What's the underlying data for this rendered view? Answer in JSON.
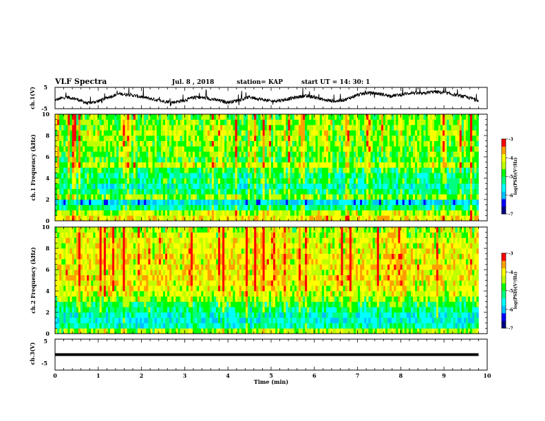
{
  "header": {
    "title": "VLF Spectra",
    "date": "Jul. 8 , 2018",
    "station": "station= KAP",
    "start": "start UT = 14: 30: 1"
  },
  "chart_data": [
    {
      "type": "line",
      "id": "ch1-voltage",
      "ylabel": "ch.1(V)",
      "ylim": [
        -5,
        5
      ],
      "ytick_labels": [
        "5",
        "-5"
      ],
      "xlim": [
        0,
        10
      ],
      "series": [
        {
          "x": [
            0,
            0.25,
            0.5,
            0.75,
            1.0,
            1.25,
            1.5,
            1.75,
            2.0,
            2.25,
            2.5,
            2.75,
            3.0,
            3.25,
            3.5,
            3.75,
            4.0,
            4.25,
            4.5,
            4.75,
            5.0,
            5.25,
            5.5,
            5.75,
            6.0,
            6.25,
            6.5,
            6.75,
            7.0,
            7.25,
            7.5,
            7.75,
            8.0,
            8.25,
            8.5,
            8.75,
            9.0,
            9.25,
            9.5,
            9.8
          ],
          "y": [
            -1.0,
            0.5,
            -0.5,
            -2.5,
            -1.5,
            0.5,
            2.0,
            1.5,
            0.5,
            -0.5,
            -1.5,
            -2.0,
            -1.0,
            0.5,
            0.0,
            -1.0,
            -2.0,
            -1.0,
            0.5,
            -0.5,
            -1.5,
            -1.0,
            0.0,
            1.0,
            0.5,
            -1.0,
            -1.5,
            -0.5,
            1.5,
            2.5,
            2.0,
            1.0,
            1.5,
            2.5,
            2.0,
            3.0,
            2.5,
            1.5,
            0.5,
            -1.0
          ]
        }
      ]
    },
    {
      "type": "heatmap",
      "id": "ch1-spectrogram",
      "ylabel": "ch.1 Frequency (kHz)",
      "ylim": [
        0,
        10
      ],
      "yticks": [
        0,
        2,
        4,
        6,
        8,
        10
      ],
      "xlim": [
        0,
        10
      ],
      "colorbar": {
        "label": "log(PSD)(V²/Hz)",
        "range": [
          -7,
          -3
        ],
        "ticks": [
          -3,
          -4,
          -5,
          -6,
          -7
        ]
      },
      "bands": [
        {
          "f0": 0.0,
          "f1": 0.5,
          "log_psd": -4.0
        },
        {
          "f0": 0.5,
          "f1": 1.0,
          "log_psd": -4.3
        },
        {
          "f0": 1.0,
          "f1": 1.5,
          "log_psd": -5.2
        },
        {
          "f0": 1.5,
          "f1": 2.0,
          "log_psd": -5.8
        },
        {
          "f0": 2.0,
          "f1": 2.5,
          "log_psd": -4.6
        },
        {
          "f0": 2.5,
          "f1": 3.0,
          "log_psd": -5.1
        },
        {
          "f0": 3.0,
          "f1": 3.5,
          "log_psd": -5.4
        },
        {
          "f0": 3.5,
          "f1": 4.0,
          "log_psd": -5.0
        },
        {
          "f0": 4.0,
          "f1": 4.5,
          "log_psd": -5.2
        },
        {
          "f0": 4.5,
          "f1": 5.0,
          "log_psd": -4.9
        },
        {
          "f0": 5.0,
          "f1": 5.5,
          "log_psd": -4.3
        },
        {
          "f0": 5.5,
          "f1": 6.0,
          "log_psd": -4.8
        },
        {
          "f0": 6.0,
          "f1": 6.5,
          "log_psd": -4.7
        },
        {
          "f0": 6.5,
          "f1": 7.0,
          "log_psd": -4.6
        },
        {
          "f0": 7.0,
          "f1": 7.5,
          "log_psd": -4.5
        },
        {
          "f0": 7.5,
          "f1": 8.0,
          "log_psd": -4.5
        },
        {
          "f0": 8.0,
          "f1": 8.5,
          "log_psd": -4.4
        },
        {
          "f0": 8.5,
          "f1": 9.0,
          "log_psd": -4.5
        },
        {
          "f0": 9.0,
          "f1": 9.5,
          "log_psd": -4.5
        },
        {
          "f0": 9.5,
          "f1": 10.0,
          "log_psd": -4.6
        }
      ]
    },
    {
      "type": "heatmap",
      "id": "ch2-spectrogram",
      "ylabel": "ch.2 Frequency (kHz)",
      "ylim": [
        0,
        10
      ],
      "yticks": [
        0,
        2,
        4,
        6,
        8,
        10
      ],
      "xlim": [
        0,
        10
      ],
      "colorbar": {
        "label": "log(PSD)(V²/Hz)",
        "range": [
          -7,
          -3
        ],
        "ticks": [
          -3,
          -4,
          -5,
          -6,
          -7
        ]
      },
      "bands": [
        {
          "f0": 0.0,
          "f1": 0.5,
          "log_psd": -4.5
        },
        {
          "f0": 0.5,
          "f1": 1.0,
          "log_psd": -5.4
        },
        {
          "f0": 1.0,
          "f1": 1.5,
          "log_psd": -5.6
        },
        {
          "f0": 1.5,
          "f1": 2.0,
          "log_psd": -5.5
        },
        {
          "f0": 2.0,
          "f1": 2.5,
          "log_psd": -5.2
        },
        {
          "f0": 2.5,
          "f1": 3.0,
          "log_psd": -5.0
        },
        {
          "f0": 3.0,
          "f1": 3.5,
          "log_psd": -4.6
        },
        {
          "f0": 3.5,
          "f1": 4.0,
          "log_psd": -4.3
        },
        {
          "f0": 4.0,
          "f1": 4.5,
          "log_psd": -4.2
        },
        {
          "f0": 4.5,
          "f1": 5.0,
          "log_psd": -4.1
        },
        {
          "f0": 5.0,
          "f1": 5.5,
          "log_psd": -4.0
        },
        {
          "f0": 5.5,
          "f1": 6.0,
          "log_psd": -4.1
        },
        {
          "f0": 6.0,
          "f1": 6.5,
          "log_psd": -4.0
        },
        {
          "f0": 6.5,
          "f1": 7.0,
          "log_psd": -4.1
        },
        {
          "f0": 7.0,
          "f1": 7.5,
          "log_psd": -4.0
        },
        {
          "f0": 7.5,
          "f1": 8.0,
          "log_psd": -4.1
        },
        {
          "f0": 8.0,
          "f1": 8.5,
          "log_psd": -4.2
        },
        {
          "f0": 8.5,
          "f1": 9.0,
          "log_psd": -4.2
        },
        {
          "f0": 9.0,
          "f1": 9.5,
          "log_psd": -4.3
        },
        {
          "f0": 9.5,
          "f1": 10.0,
          "log_psd": -4.4
        }
      ]
    },
    {
      "type": "line",
      "id": "ch3-voltage",
      "ylabel": "ch.3(V)",
      "ylim": [
        -5,
        5
      ],
      "ytick_labels": [
        "5",
        "-5"
      ],
      "xlim": [
        0,
        10
      ],
      "series": [
        {
          "x": [
            0,
            9.8
          ],
          "y": [
            0,
            0
          ]
        }
      ]
    }
  ],
  "xaxis": {
    "label": "Time (min)",
    "range": [
      0,
      10
    ],
    "tick_labels": [
      "0",
      "1",
      "2",
      "3",
      "4",
      "5",
      "6",
      "7",
      "8",
      "9",
      "10"
    ]
  },
  "colors": {
    "line": "#000000",
    "colormap": [
      "#000080",
      "#0000ff",
      "#00c0ff",
      "#00ffff",
      "#00ff80",
      "#00ff00",
      "#c0ff00",
      "#ffff00",
      "#ffa000",
      "#ff0000",
      "#ffffff"
    ]
  }
}
